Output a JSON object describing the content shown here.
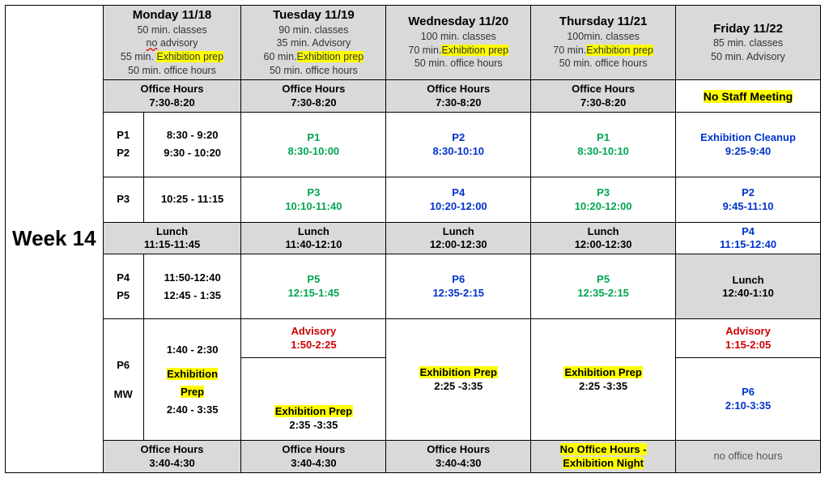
{
  "week_label": "Week 14",
  "days": {
    "mon": {
      "title": "Monday 11/18",
      "subs": [
        "50 min. classes",
        "<span class=\"wavy\">no</span>  advisory",
        "55 min. <span class=\"hl\">Exhibition prep</span>",
        "50 min. office hours"
      ]
    },
    "tue": {
      "title": "Tuesday 11/19",
      "subs": [
        "90 min. classes",
        "35 min. Advisory",
        "60 min.<span class=\"hl\">Exhibition prep</span>",
        "50 min. office hours"
      ]
    },
    "wed": {
      "title": "Wednesday 11/20",
      "subs": [
        "100 min. classes",
        "70 min.<span class=\"hl\">Exhibition prep</span>",
        "50 min. office hours"
      ]
    },
    "thu": {
      "title": "Thursday 11/21",
      "subs": [
        "100min. classes",
        "70  min.<span class=\"hl\">Exhibition prep</span>",
        "50 min. office hours"
      ]
    },
    "fri": {
      "title": "Friday 11/22",
      "subs": [
        "85 min. classes",
        "50 min. Advisory"
      ]
    }
  },
  "office_hours_top": {
    "label": "Office Hours",
    "time": "7:30-8:20"
  },
  "friday_top": "No Staff Meeting",
  "mon_periods": {
    "block1": [
      {
        "p": "P1",
        "t": "8:30 - 9:20"
      },
      {
        "p": "P2",
        "t": "9:30 - 10:20"
      }
    ],
    "block2": [
      {
        "p": "P3",
        "t": "10:25 - 11:15"
      }
    ],
    "lunch": {
      "label": "Lunch",
      "time": "11:15-11:45"
    },
    "block3": [
      {
        "p": "P4",
        "t": "11:50-12:40"
      },
      {
        "p": "P5",
        "t": "12:45 - 1:35"
      }
    ],
    "block4": [
      {
        "p": "P6",
        "t": "1:40 - 2:30"
      },
      {
        "p": "MW",
        "t": "<span class=\"hl\">Exhibition</span><br><span class=\"hl\">Prep</span><br>2:40 - 3:35"
      }
    ]
  },
  "tue": {
    "b1": {
      "label": "P1",
      "time": "8:30-10:00",
      "cls": "green"
    },
    "b2": {
      "label": "P3",
      "time": "10:10-11:40",
      "cls": "green"
    },
    "lunch": {
      "label": "Lunch",
      "time": "11:40-12:10"
    },
    "b3": {
      "label": "P5",
      "time": "12:15-1:45",
      "cls": "green"
    },
    "adv": {
      "label": "Advisory",
      "time": "1:50-2:25",
      "cls": "red"
    },
    "prep": {
      "label": "Exhibition Prep",
      "time": "2:35 -3:35"
    }
  },
  "wed": {
    "b1": {
      "label": "P2",
      "time": "8:30-10:10",
      "cls": "blue"
    },
    "b2": {
      "label": "P4",
      "time": "10:20-12:00",
      "cls": "blue"
    },
    "lunch": {
      "label": "Lunch",
      "time": "12:00-12:30"
    },
    "b3": {
      "label": "P6",
      "time": "12:35-2:15",
      "cls": "blue"
    },
    "prep": {
      "label": "Exhibition Prep",
      "time": "2:25 -3:35"
    }
  },
  "thu": {
    "b1": {
      "label": "P1",
      "time": "8:30-10:10",
      "cls": "green"
    },
    "b2": {
      "label": "P3",
      "time": "10:20-12:00",
      "cls": "green"
    },
    "lunch": {
      "label": "Lunch",
      "time": "12:00-12:30"
    },
    "b3": {
      "label": "P5",
      "time": "12:35-2:15",
      "cls": "green"
    },
    "prep": {
      "label": "Exhibition Prep",
      "time": "2:25 -3:35"
    }
  },
  "fri": {
    "b1": {
      "label": "Exhibition Cleanup",
      "time": "9:25-9:40",
      "cls": "blue"
    },
    "b2": {
      "label": "P2",
      "time": "9:45-11:10",
      "cls": "blue"
    },
    "b3": {
      "label": "P4",
      "time": "11:15-12:40",
      "cls": "blue"
    },
    "lunch": {
      "label": "Lunch",
      "time": "12:40-1:10"
    },
    "adv": {
      "label": "Advisory",
      "time": "1:15-2:05",
      "cls": "red"
    },
    "b4": {
      "label": "P6",
      "time": "2:10-3:35",
      "cls": "blue"
    }
  },
  "office_hours_bottom": {
    "label": "Office Hours",
    "time": "3:40-4:30"
  },
  "thu_bottom": "No Office Hours - Exhibition Night",
  "fri_bottom": "no office hours",
  "colors": {
    "shaded_bg": "#d9d9d9",
    "highlight": "#ffff00",
    "green": "#00a651",
    "blue": "#0033cc",
    "red": "#cc0000",
    "border": "#000000"
  }
}
